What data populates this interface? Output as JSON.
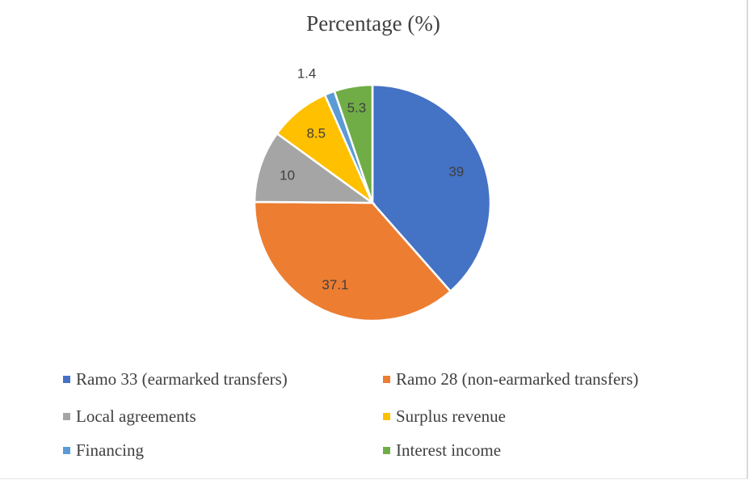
{
  "chart_data": {
    "type": "pie",
    "title": "Percentage (%)",
    "categories": [
      "Ramo 33 (earmarked transfers)",
      "Ramo 28 (non-earmarked transfers)",
      "Local agreements",
      "Surplus revenue",
      "Financing",
      "Interest income"
    ],
    "values": [
      39,
      37.1,
      10,
      8.5,
      1.4,
      5.3
    ],
    "data_labels": [
      "39",
      "37.1",
      "10",
      "8.5",
      "1.4",
      "5.3"
    ],
    "colors": [
      "#4472c4",
      "#ed7d31",
      "#a5a5a5",
      "#ffc000",
      "#5b9bd5",
      "#70ad47"
    ],
    "start_angle": "12 o'clock",
    "direction": "clockwise",
    "legend_placement": "bottom"
  }
}
